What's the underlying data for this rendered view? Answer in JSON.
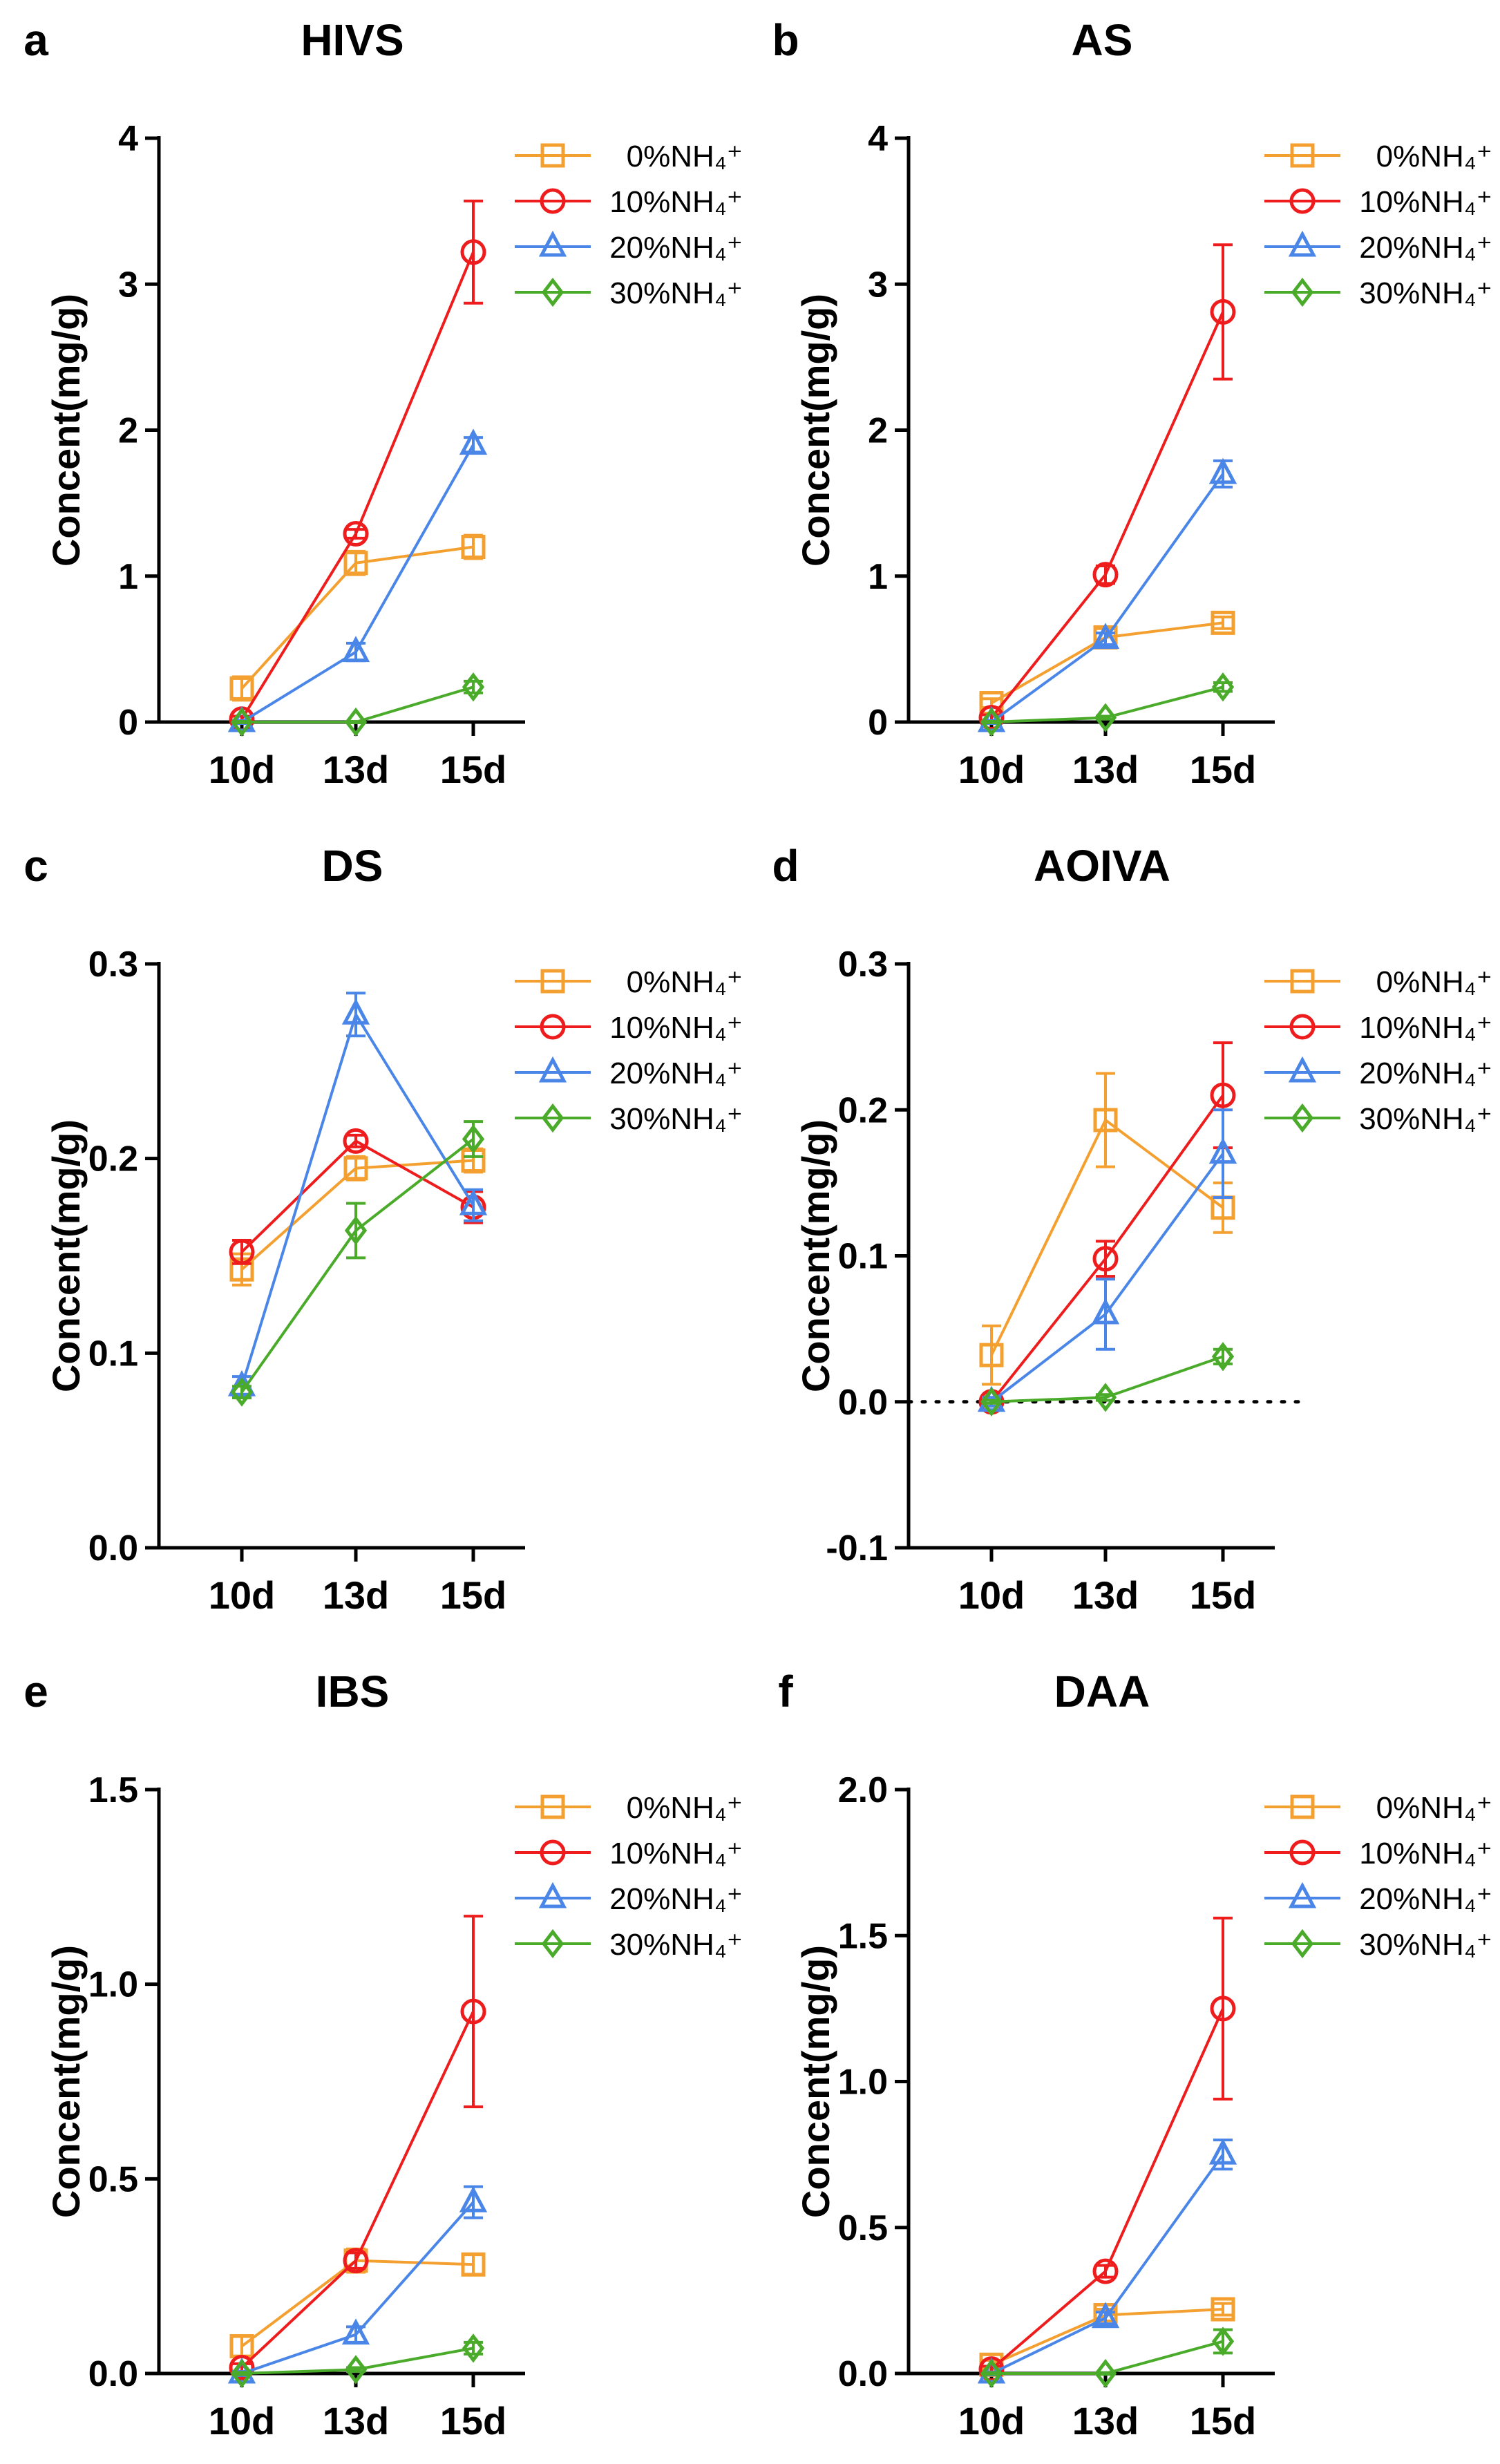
{
  "colors": {
    "0%NH4+": "#f4a030",
    "10%NH4+": "#ee1c1c",
    "20%NH4+": "#4a86e8",
    "30%NH4+": "#4aaa2a"
  },
  "legend_labels": [
    "0%NH₄⁺",
    "10%NH₄⁺",
    "20%NH₄⁺",
    "30%NH₄⁺"
  ],
  "chart_data": [
    {
      "panel": "a",
      "type": "line",
      "title": "HIVS",
      "ylabel": "Concent(mg/g)",
      "xlabel": "",
      "categories": [
        "10d",
        "13d",
        "15d"
      ],
      "ylim": [
        0,
        4
      ],
      "yticks": [
        0,
        1,
        2,
        3,
        4
      ],
      "ytick_labels": [
        "0",
        "1",
        "2",
        "3",
        "4"
      ],
      "series": [
        {
          "name": "0%NH4+",
          "marker": "square",
          "values": [
            0.23,
            1.09,
            1.2
          ],
          "errors": [
            0.08,
            0.08,
            0.08
          ]
        },
        {
          "name": "10%NH4+",
          "marker": "circle",
          "values": [
            0.02,
            1.29,
            3.22
          ],
          "errors": [
            0.02,
            0.03,
            0.35
          ]
        },
        {
          "name": "20%NH4+",
          "marker": "triangle",
          "values": [
            0.0,
            0.48,
            1.9
          ],
          "errors": [
            0.01,
            0.06,
            0.05
          ]
        },
        {
          "name": "30%NH4+",
          "marker": "diamond",
          "values": [
            0.0,
            0.0,
            0.24
          ],
          "errors": [
            0.005,
            0.005,
            0.04
          ]
        }
      ]
    },
    {
      "panel": "b",
      "type": "line",
      "title": "AS",
      "ylabel": "Concent(mg/g)",
      "xlabel": "",
      "categories": [
        "10d",
        "13d",
        "15d"
      ],
      "ylim": [
        0,
        4
      ],
      "yticks": [
        0,
        1,
        2,
        3,
        4
      ],
      "ytick_labels": [
        "0",
        "1",
        "2",
        "3",
        "4"
      ],
      "series": [
        {
          "name": "0%NH4+",
          "marker": "square",
          "values": [
            0.13,
            0.58,
            0.68
          ],
          "errors": [
            0.03,
            0.06,
            0.04
          ]
        },
        {
          "name": "10%NH4+",
          "marker": "circle",
          "values": [
            0.03,
            1.01,
            2.81
          ],
          "errors": [
            0.02,
            0.06,
            0.46
          ]
        },
        {
          "name": "20%NH4+",
          "marker": "triangle",
          "values": [
            0.0,
            0.57,
            1.7
          ],
          "errors": [
            0.01,
            0.04,
            0.09
          ]
        },
        {
          "name": "30%NH4+",
          "marker": "diamond",
          "values": [
            0.0,
            0.03,
            0.24
          ],
          "errors": [
            0.005,
            0.01,
            0.03
          ]
        }
      ]
    },
    {
      "panel": "c",
      "type": "line",
      "title": "DS",
      "ylabel": "Concent(mg/g)",
      "xlabel": "",
      "categories": [
        "10d",
        "13d",
        "15d"
      ],
      "ylim": [
        0,
        0.3
      ],
      "yticks": [
        0,
        0.1,
        0.2,
        0.3
      ],
      "ytick_labels": [
        "0.0",
        "0.1",
        "0.2",
        "0.3"
      ],
      "series": [
        {
          "name": "0%NH4+",
          "marker": "square",
          "values": [
            0.143,
            0.195,
            0.199
          ],
          "errors": [
            0.008,
            0.006,
            0.006
          ]
        },
        {
          "name": "10%NH4+",
          "marker": "circle",
          "values": [
            0.152,
            0.209,
            0.175
          ],
          "errors": [
            0.006,
            0.003,
            0.008
          ]
        },
        {
          "name": "20%NH4+",
          "marker": "triangle",
          "values": [
            0.083,
            0.274,
            0.176
          ],
          "errors": [
            0.005,
            0.011,
            0.008
          ]
        },
        {
          "name": "30%NH4+",
          "marker": "diamond",
          "values": [
            0.08,
            0.163,
            0.21
          ],
          "errors": [
            0.003,
            0.014,
            0.009
          ]
        }
      ]
    },
    {
      "panel": "d",
      "type": "line",
      "title": "AOIVA",
      "ylabel": "Concent(mg/g)",
      "xlabel": "",
      "categories": [
        "10d",
        "13d",
        "15d"
      ],
      "ylim": [
        -0.1,
        0.3
      ],
      "yticks": [
        -0.1,
        0,
        0.1,
        0.2,
        0.3
      ],
      "ytick_labels": [
        "-0.1",
        "0.0",
        "0.1",
        "0.2",
        "0.3"
      ],
      "zero_line": true,
      "series": [
        {
          "name": "0%NH4+",
          "marker": "square",
          "values": [
            0.032,
            0.193,
            0.133
          ],
          "errors": [
            0.02,
            0.032,
            0.017
          ]
        },
        {
          "name": "10%NH4+",
          "marker": "circle",
          "values": [
            0.0,
            0.098,
            0.21
          ],
          "errors": [
            0.003,
            0.012,
            0.036
          ]
        },
        {
          "name": "20%NH4+",
          "marker": "triangle",
          "values": [
            0.0,
            0.06,
            0.17
          ],
          "errors": [
            0.003,
            0.024,
            0.03
          ]
        },
        {
          "name": "30%NH4+",
          "marker": "diamond",
          "values": [
            0.0,
            0.003,
            0.031
          ],
          "errors": [
            0.001,
            0.002,
            0.005
          ]
        }
      ]
    },
    {
      "panel": "e",
      "type": "line",
      "title": "IBS",
      "ylabel": "Concent(mg/g)",
      "xlabel": "",
      "categories": [
        "10d",
        "13d",
        "15d"
      ],
      "ylim": [
        0,
        1.5
      ],
      "yticks": [
        0,
        0.5,
        1.0,
        1.5
      ],
      "ytick_labels": [
        "0.0",
        "0.5",
        "1.0",
        "1.5"
      ],
      "series": [
        {
          "name": "0%NH4+",
          "marker": "square",
          "values": [
            0.07,
            0.29,
            0.28
          ],
          "errors": [
            0.025,
            0.03,
            0.025
          ]
        },
        {
          "name": "10%NH4+",
          "marker": "circle",
          "values": [
            0.015,
            0.29,
            0.93
          ],
          "errors": [
            0.01,
            0.02,
            0.245
          ]
        },
        {
          "name": "20%NH4+",
          "marker": "triangle",
          "values": [
            0.0,
            0.1,
            0.44
          ],
          "errors": [
            0.005,
            0.02,
            0.04
          ]
        },
        {
          "name": "30%NH4+",
          "marker": "diamond",
          "values": [
            0.0,
            0.01,
            0.065
          ],
          "errors": [
            0.003,
            0.005,
            0.015
          ]
        }
      ]
    },
    {
      "panel": "f",
      "type": "line",
      "title": "DAA",
      "ylabel": "Concent(mg/g)",
      "xlabel": "",
      "categories": [
        "10d",
        "13d",
        "15d"
      ],
      "ylim": [
        0,
        2.0
      ],
      "yticks": [
        0,
        0.5,
        1.0,
        1.5,
        2.0
      ],
      "ytick_labels": [
        "0.0",
        "0.5",
        "1.0",
        "1.5",
        "2.0"
      ],
      "series": [
        {
          "name": "0%NH4+",
          "marker": "square",
          "values": [
            0.03,
            0.2,
            0.22
          ],
          "errors": [
            0.015,
            0.02,
            0.02
          ]
        },
        {
          "name": "10%NH4+",
          "marker": "circle",
          "values": [
            0.015,
            0.35,
            1.25
          ],
          "errors": [
            0.01,
            0.02,
            0.31
          ]
        },
        {
          "name": "20%NH4+",
          "marker": "triangle",
          "values": [
            0.0,
            0.19,
            0.75
          ],
          "errors": [
            0.005,
            0.02,
            0.05
          ]
        },
        {
          "name": "30%NH4+",
          "marker": "diamond",
          "values": [
            0.0,
            0.0,
            0.11
          ],
          "errors": [
            0.003,
            0.003,
            0.04
          ]
        }
      ]
    }
  ]
}
